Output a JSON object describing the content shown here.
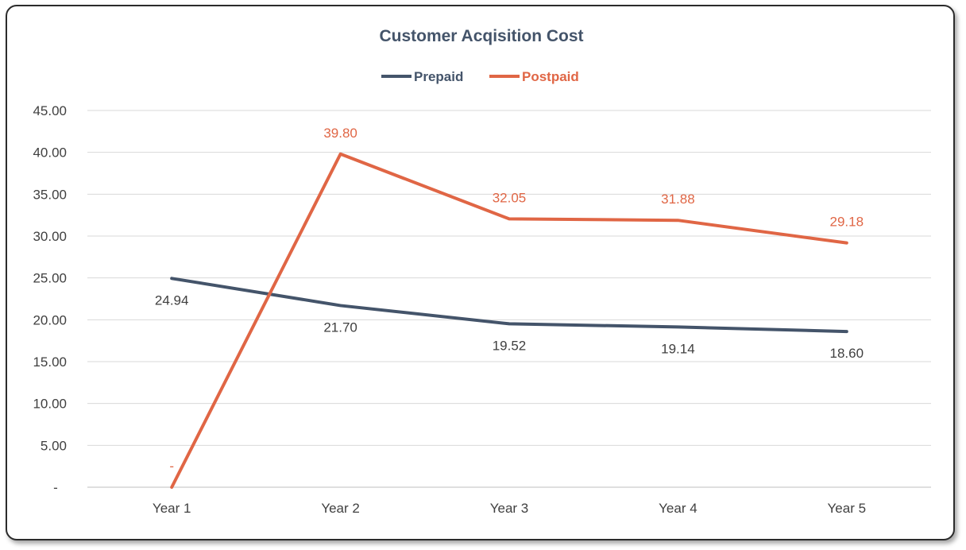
{
  "chart_data": {
    "type": "line",
    "title": "Customer Acqisition Cost",
    "categories": [
      "Year 1",
      "Year 2",
      "Year 3",
      "Year 4",
      "Year 5"
    ],
    "ylim": [
      0,
      45
    ],
    "yticks": [
      0,
      5,
      10,
      15,
      20,
      25,
      30,
      35,
      40,
      45
    ],
    "ytick_labels": [
      "-",
      "5.00",
      "10.00",
      "15.00",
      "20.00",
      "25.00",
      "30.00",
      "35.00",
      "40.00",
      "45.00"
    ],
    "grid": true,
    "legend": "top",
    "series": [
      {
        "name": "Prepaid",
        "color": "#44546a",
        "values": [
          24.94,
          21.7,
          19.52,
          19.14,
          18.6
        ],
        "labels": [
          "24.94",
          "21.70",
          "19.52",
          "19.14",
          "18.60"
        ],
        "label_position": "below"
      },
      {
        "name": "Postpaid",
        "color": "#e06645",
        "values": [
          0,
          39.8,
          32.05,
          31.88,
          29.18
        ],
        "labels": [
          "-",
          "39.80",
          "32.05",
          "31.88",
          "29.18"
        ],
        "label_position": "above"
      }
    ]
  }
}
